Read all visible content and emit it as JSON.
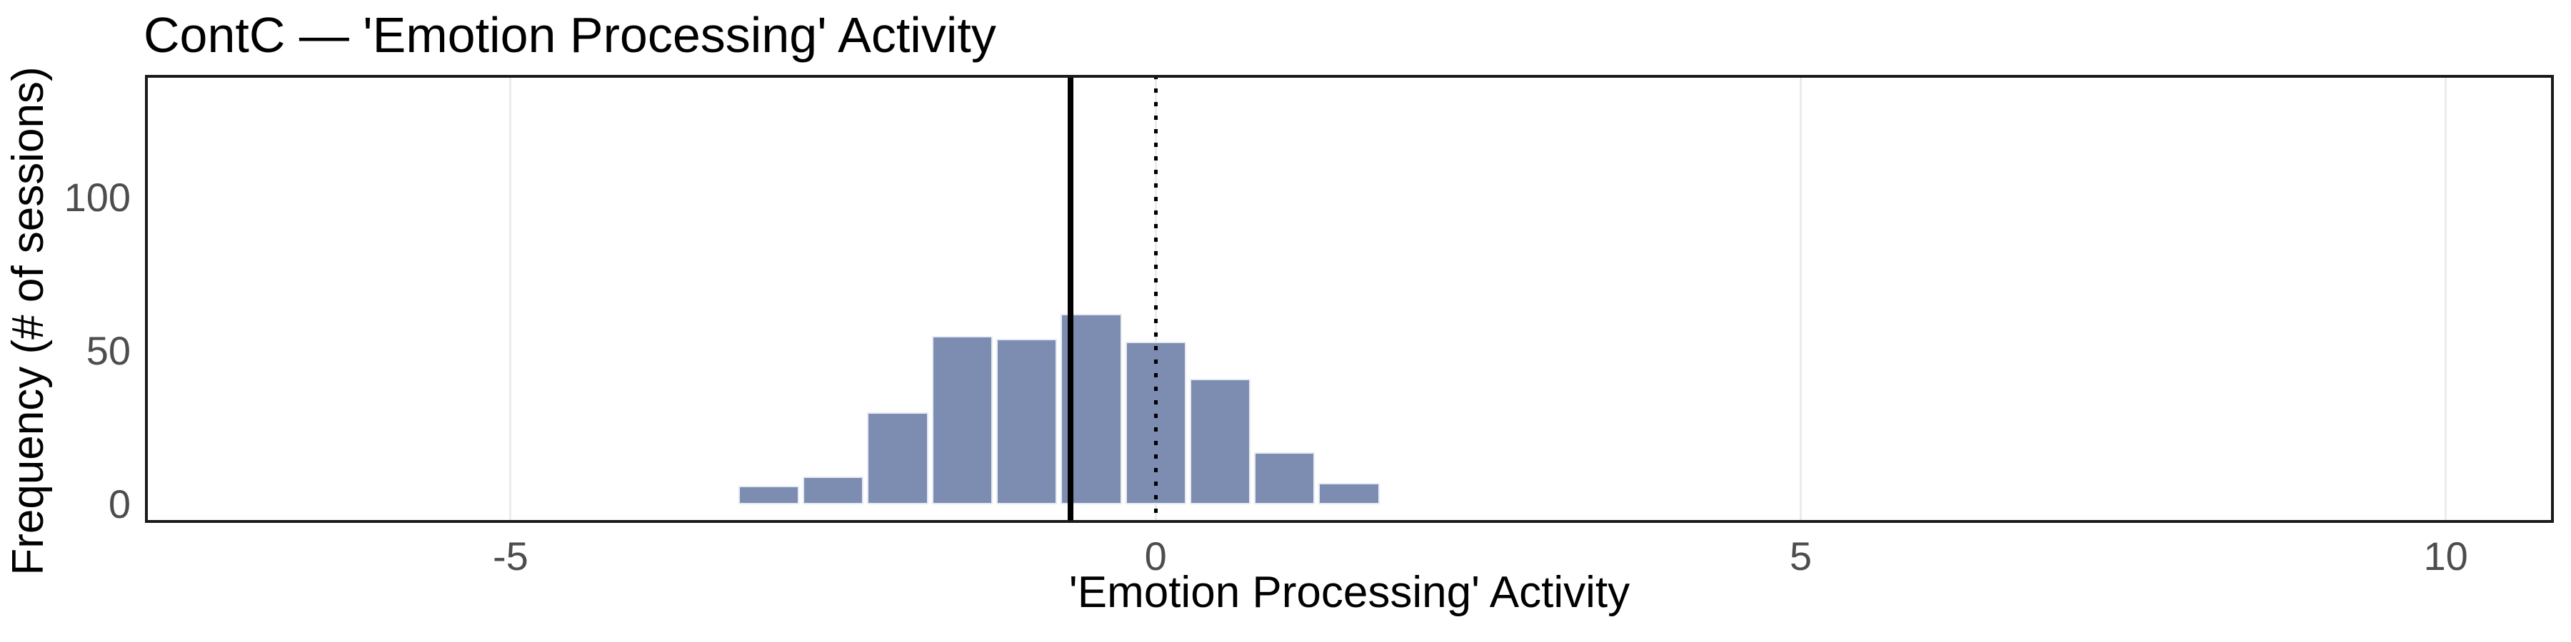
{
  "figure": {
    "title": "ContC — 'Emotion Processing' Activity",
    "x_axis_title": "'Emotion Processing' Activity",
    "y_axis_title": "Frequency (# of sessions)"
  },
  "colors": {
    "background": "#FFFFFF",
    "bar_fill": "#7D8DB2",
    "bar_edge": "#E7EBF3",
    "panel_border": "#1A1A1A",
    "gridline": "#ECECEC",
    "tick_label": "#4D4D4D",
    "title_text": "#000000",
    "reference_line": "#000000"
  },
  "chart_data": {
    "type": "bar",
    "subtype": "histogram",
    "title": "ContC — 'Emotion Processing' Activity",
    "xlabel": "'Emotion Processing' Activity",
    "ylabel": "Frequency (# of sessions)",
    "bin_width": 0.5,
    "bin_edges": [
      -3.25,
      -2.75,
      -2.25,
      -1.75,
      -1.25,
      -0.75,
      -0.25,
      0.25,
      0.75,
      1.25,
      1.75
    ],
    "counts": [
      6,
      9,
      30,
      55,
      54,
      62,
      53,
      41,
      17,
      7
    ],
    "x_ticks": [
      {
        "value": -5,
        "label": "-5"
      },
      {
        "value": 0,
        "label": "0"
      },
      {
        "value": 5,
        "label": "5"
      },
      {
        "value": 10,
        "label": "10"
      }
    ],
    "y_ticks": [
      {
        "value": 0,
        "label": "0"
      },
      {
        "value": 50,
        "label": "50"
      },
      {
        "value": 100,
        "label": "100"
      }
    ],
    "xlim": [
      -7.834,
      10.838
    ],
    "ylim": [
      -6.05,
      140.05
    ],
    "grid": "major-x-only",
    "legend": "none",
    "reference_lines": [
      {
        "style": "solid",
        "x": -0.66
      },
      {
        "style": "dotted",
        "x": 0
      }
    ]
  }
}
